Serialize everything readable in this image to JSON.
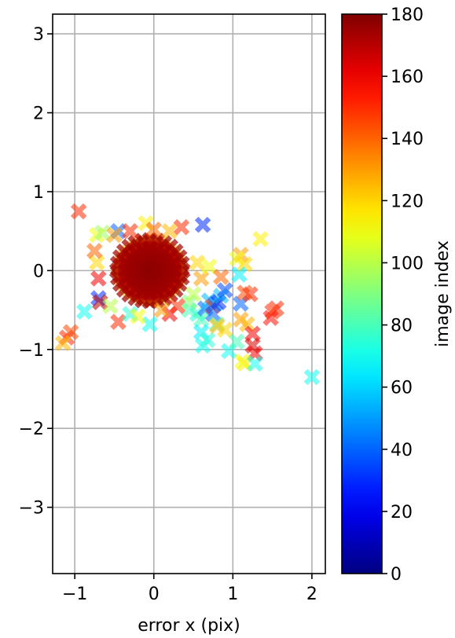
{
  "chart_data": {
    "type": "scatter",
    "title": "",
    "xlabel": "error x (pix)",
    "ylabel": "",
    "xlim": [
      -1.28,
      2.17
    ],
    "ylim": [
      -3.84,
      3.25
    ],
    "xticks": [
      {
        "value": -1,
        "label": "−1"
      },
      {
        "value": 0,
        "label": "0"
      },
      {
        "value": 1,
        "label": "1"
      },
      {
        "value": 2,
        "label": "2"
      }
    ],
    "yticks": [
      {
        "value": 3,
        "label": "3"
      },
      {
        "value": 2,
        "label": "2"
      },
      {
        "value": 1,
        "label": "1"
      },
      {
        "value": 0,
        "label": "0"
      },
      {
        "value": -1,
        "label": "−1"
      },
      {
        "value": -2,
        "label": "−2"
      },
      {
        "value": -3,
        "label": "−3"
      }
    ],
    "grid": true,
    "marker": "x",
    "colormap": "jet",
    "colorbar": {
      "label": "image index",
      "range": [
        0,
        180
      ],
      "ticks": [
        {
          "value": 0,
          "label": "0"
        },
        {
          "value": 20,
          "label": "20"
        },
        {
          "value": 40,
          "label": "40"
        },
        {
          "value": 60,
          "label": "60"
        },
        {
          "value": 80,
          "label": "80"
        },
        {
          "value": 100,
          "label": "100"
        },
        {
          "value": 120,
          "label": "120"
        },
        {
          "value": 140,
          "label": "140"
        },
        {
          "value": 160,
          "label": "160"
        },
        {
          "value": 180,
          "label": "180"
        }
      ]
    },
    "central_cluster": {
      "cx": -0.05,
      "cy": 0.0,
      "rx": 0.45,
      "ry": 0.42
    },
    "points": [
      {
        "x": -0.95,
        "y": 0.75,
        "c": 150
      },
      {
        "x": -1.1,
        "y": -0.85,
        "c": 150
      },
      {
        "x": -1.05,
        "y": -0.78,
        "c": 145
      },
      {
        "x": -1.15,
        "y": -0.92,
        "c": 125
      },
      {
        "x": -0.88,
        "y": -0.52,
        "c": 70
      },
      {
        "x": -0.72,
        "y": 0.45,
        "c": 110
      },
      {
        "x": -0.65,
        "y": 0.48,
        "c": 95
      },
      {
        "x": -0.45,
        "y": 0.5,
        "c": 40
      },
      {
        "x": -0.1,
        "y": 0.6,
        "c": 115
      },
      {
        "x": 0.35,
        "y": 0.55,
        "c": 150
      },
      {
        "x": 0.62,
        "y": 0.58,
        "c": 30
      },
      {
        "x": 1.35,
        "y": 0.4,
        "c": 115
      },
      {
        "x": 1.1,
        "y": 0.2,
        "c": 130
      },
      {
        "x": 1.05,
        "y": 0.15,
        "c": 110
      },
      {
        "x": 1.15,
        "y": 0.08,
        "c": 120
      },
      {
        "x": 1.08,
        "y": -0.05,
        "c": 65
      },
      {
        "x": -0.7,
        "y": -0.35,
        "c": 30
      },
      {
        "x": -0.68,
        "y": -0.4,
        "c": 170
      },
      {
        "x": -0.45,
        "y": -0.65,
        "c": 150
      },
      {
        "x": -0.3,
        "y": -0.55,
        "c": 75
      },
      {
        "x": -0.05,
        "y": -0.68,
        "c": 70
      },
      {
        "x": 0.2,
        "y": -0.55,
        "c": 160
      },
      {
        "x": 0.45,
        "y": -0.5,
        "c": 80
      },
      {
        "x": 0.55,
        "y": -0.55,
        "c": 75
      },
      {
        "x": 0.6,
        "y": -0.62,
        "c": 80
      },
      {
        "x": 0.65,
        "y": -0.48,
        "c": 40
      },
      {
        "x": 0.7,
        "y": -0.38,
        "c": 55
      },
      {
        "x": 0.75,
        "y": -0.45,
        "c": 150
      },
      {
        "x": 0.78,
        "y": -0.42,
        "c": 45
      },
      {
        "x": 0.82,
        "y": -0.4,
        "c": 30
      },
      {
        "x": 0.85,
        "y": -0.32,
        "c": 55
      },
      {
        "x": 0.9,
        "y": -0.25,
        "c": 35
      },
      {
        "x": 0.75,
        "y": -0.55,
        "c": 40
      },
      {
        "x": 0.8,
        "y": -0.68,
        "c": 80
      },
      {
        "x": 0.6,
        "y": -0.78,
        "c": 65
      },
      {
        "x": 0.62,
        "y": -0.95,
        "c": 70
      },
      {
        "x": 0.68,
        "y": -0.88,
        "c": 75
      },
      {
        "x": 0.8,
        "y": -0.7,
        "c": 125
      },
      {
        "x": 0.9,
        "y": -0.75,
        "c": 120
      },
      {
        "x": 0.95,
        "y": -1.02,
        "c": 70
      },
      {
        "x": 1.05,
        "y": -0.9,
        "c": 80
      },
      {
        "x": 1.1,
        "y": -0.42,
        "c": 40
      },
      {
        "x": 1.15,
        "y": -0.28,
        "c": 145
      },
      {
        "x": 1.22,
        "y": -0.3,
        "c": 150
      },
      {
        "x": 1.1,
        "y": -0.62,
        "c": 130
      },
      {
        "x": 1.18,
        "y": -0.68,
        "c": 125
      },
      {
        "x": 1.25,
        "y": -0.8,
        "c": 160
      },
      {
        "x": 1.25,
        "y": -0.95,
        "c": 165
      },
      {
        "x": 1.28,
        "y": -1.05,
        "c": 160
      },
      {
        "x": 1.12,
        "y": -1.15,
        "c": 110
      },
      {
        "x": 1.15,
        "y": -1.18,
        "c": 115
      },
      {
        "x": 1.28,
        "y": -1.18,
        "c": 70
      },
      {
        "x": 1.5,
        "y": -0.52,
        "c": 150
      },
      {
        "x": 1.48,
        "y": -0.6,
        "c": 155
      },
      {
        "x": 1.55,
        "y": -0.48,
        "c": 150
      },
      {
        "x": 2.0,
        "y": -1.35,
        "c": 70
      },
      {
        "x": 0.45,
        "y": -0.4,
        "c": 90
      },
      {
        "x": 0.5,
        "y": -0.3,
        "c": 100
      },
      {
        "x": 0.55,
        "y": 0.1,
        "c": 120
      },
      {
        "x": 0.6,
        "y": -0.1,
        "c": 130
      },
      {
        "x": 0.7,
        "y": 0.05,
        "c": 110
      },
      {
        "x": 0.85,
        "y": -0.08,
        "c": 140
      },
      {
        "x": -0.72,
        "y": 0.1,
        "c": 120
      },
      {
        "x": -0.7,
        "y": -0.1,
        "c": 160
      },
      {
        "x": -0.75,
        "y": 0.25,
        "c": 140
      },
      {
        "x": -0.55,
        "y": -0.45,
        "c": 100
      },
      {
        "x": -0.2,
        "y": -0.58,
        "c": 110
      },
      {
        "x": 0.1,
        "y": -0.5,
        "c": 130
      },
      {
        "x": 0.3,
        "y": -0.45,
        "c": 150
      },
      {
        "x": -0.5,
        "y": 0.45,
        "c": 130
      },
      {
        "x": -0.3,
        "y": 0.5,
        "c": 150
      },
      {
        "x": 0.0,
        "y": 0.52,
        "c": 140
      },
      {
        "x": 0.2,
        "y": 0.5,
        "c": 125
      }
    ]
  }
}
